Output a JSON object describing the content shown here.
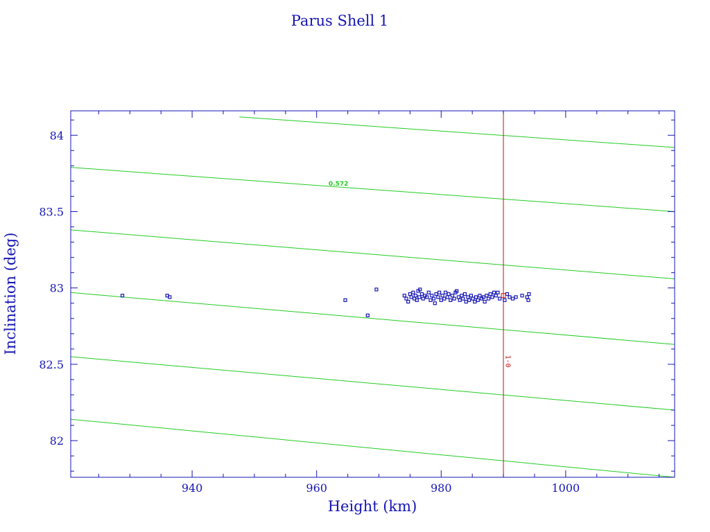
{
  "chart_data": {
    "type": "scatter",
    "title": "Parus Shell 1",
    "xlabel": "Height (km)",
    "ylabel": "Inclination (deg)",
    "xlim": [
      920.5,
      1017.5
    ],
    "ylim": [
      81.76,
      84.16
    ],
    "x_ticks": [
      940,
      960,
      980,
      1000
    ],
    "x_tick_labels": [
      "940",
      "960",
      "980",
      "1000"
    ],
    "y_ticks": [
      82,
      82.5,
      83,
      83.5,
      84
    ],
    "y_tick_labels": [
      "82",
      "82.5",
      "83",
      "83.5",
      "84"
    ],
    "grid": false,
    "colors": {
      "frame": "#1414b4",
      "points": "#1414b4",
      "contours": "#22cc22",
      "reference": "#cc1111"
    },
    "contour_lines": [
      {
        "points": [
          [
            947.6,
            84.12
          ],
          [
            1017.5,
            83.92
          ]
        ]
      },
      {
        "points": [
          [
            920.5,
            83.79
          ],
          [
            1017.5,
            83.5
          ]
        ],
        "label": "0.572"
      },
      {
        "points": [
          [
            920.5,
            83.38
          ],
          [
            1017.5,
            83.06
          ]
        ]
      },
      {
        "points": [
          [
            920.5,
            82.97
          ],
          [
            1017.5,
            82.63
          ]
        ]
      },
      {
        "points": [
          [
            920.5,
            82.55
          ],
          [
            1017.5,
            82.2
          ]
        ]
      },
      {
        "points": [
          [
            920.5,
            82.14
          ],
          [
            1017.5,
            81.76
          ]
        ]
      }
    ],
    "contour_label_position": [
      963.5,
      83.67
    ],
    "reference_line": {
      "x": 990,
      "label": "1-0"
    },
    "reference_label_position": [
      990.4,
      82.52
    ],
    "reference_marker": [
      990.0,
      82.95
    ],
    "points": [
      [
        928.8,
        82.95
      ],
      [
        936.0,
        82.95
      ],
      [
        936.4,
        82.94
      ],
      [
        964.6,
        82.92
      ],
      [
        968.2,
        82.82
      ],
      [
        969.6,
        82.99
      ],
      [
        974.1,
        82.95
      ],
      [
        974.4,
        82.93
      ],
      [
        974.7,
        82.91
      ],
      [
        975.0,
        82.96
      ],
      [
        975.2,
        82.94
      ],
      [
        975.5,
        82.97
      ],
      [
        975.7,
        82.93
      ],
      [
        975.9,
        82.95
      ],
      [
        976.1,
        82.92
      ],
      [
        976.3,
        82.98
      ],
      [
        976.5,
        82.94
      ],
      [
        976.6,
        82.99
      ],
      [
        976.9,
        82.96
      ],
      [
        977.1,
        82.93
      ],
      [
        977.4,
        82.95
      ],
      [
        977.7,
        82.94
      ],
      [
        978.0,
        82.97
      ],
      [
        978.3,
        82.92
      ],
      [
        978.5,
        82.95
      ],
      [
        978.8,
        82.93
      ],
      [
        979.0,
        82.9
      ],
      [
        979.2,
        82.96
      ],
      [
        979.5,
        82.94
      ],
      [
        979.7,
        82.97
      ],
      [
        980.0,
        82.92
      ],
      [
        980.2,
        82.95
      ],
      [
        980.5,
        82.93
      ],
      [
        980.7,
        82.97
      ],
      [
        981.0,
        82.94
      ],
      [
        981.2,
        82.96
      ],
      [
        981.5,
        82.92
      ],
      [
        981.8,
        82.95
      ],
      [
        982.1,
        82.93
      ],
      [
        982.3,
        82.97
      ],
      [
        982.5,
        82.98
      ],
      [
        982.8,
        82.94
      ],
      [
        983.0,
        82.92
      ],
      [
        983.3,
        82.95
      ],
      [
        983.5,
        82.93
      ],
      [
        983.8,
        82.96
      ],
      [
        984.0,
        82.91
      ],
      [
        984.3,
        82.94
      ],
      [
        984.5,
        82.92
      ],
      [
        984.8,
        82.95
      ],
      [
        985.1,
        82.93
      ],
      [
        985.4,
        82.91
      ],
      [
        985.6,
        82.94
      ],
      [
        985.9,
        82.92
      ],
      [
        986.2,
        82.95
      ],
      [
        986.5,
        82.93
      ],
      [
        986.8,
        82.94
      ],
      [
        987.0,
        82.91
      ],
      [
        987.3,
        82.95
      ],
      [
        987.6,
        82.93
      ],
      [
        987.9,
        82.96
      ],
      [
        988.2,
        82.94
      ],
      [
        988.5,
        82.97
      ],
      [
        988.8,
        82.95
      ],
      [
        989.1,
        82.97
      ],
      [
        989.4,
        82.93
      ],
      [
        990.2,
        82.92
      ],
      [
        990.6,
        82.96
      ],
      [
        991.0,
        82.94
      ],
      [
        991.5,
        82.93
      ],
      [
        992.0,
        82.94
      ],
      [
        993.0,
        82.95
      ],
      [
        993.8,
        82.94
      ],
      [
        994.0,
        82.92
      ],
      [
        994.1,
        82.96
      ]
    ]
  }
}
